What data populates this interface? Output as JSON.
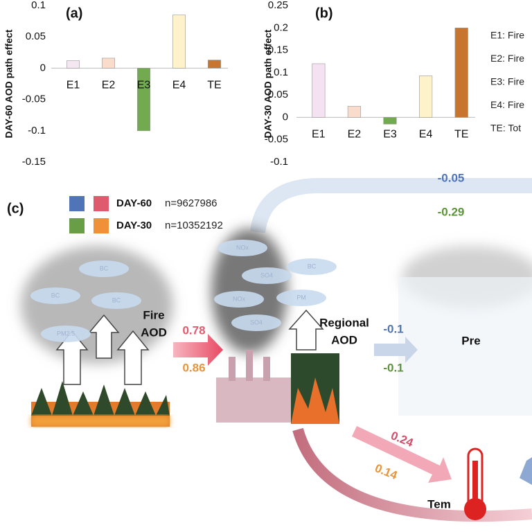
{
  "chart_data": [
    {
      "type": "bar",
      "title": "(a)",
      "y_label": "DAY-60 AOD path effect",
      "categories": [
        "E1",
        "E2",
        "E3",
        "E4",
        "TE"
      ],
      "values": [
        0.012,
        0.016,
        -0.1,
        0.085,
        0.013
      ],
      "colors": [
        "#f4e7f1",
        "#f9dccb",
        "#72aa50",
        "#fdf2c9",
        "#c8762f"
      ],
      "ylim": [
        -0.15,
        0.1
      ],
      "yticks": [
        -0.15,
        -0.1,
        -0.05,
        0,
        0.05,
        0.1
      ]
    },
    {
      "type": "bar",
      "title": "(b)",
      "y_label": "DAY-30 AOD path effect",
      "categories": [
        "E1",
        "E2",
        "E3",
        "E4",
        "TE"
      ],
      "values": [
        0.12,
        0.025,
        -0.015,
        0.093,
        0.2
      ],
      "colors": [
        "#f4e1f1",
        "#f9dccb",
        "#72aa50",
        "#fdf2c9",
        "#c8762f"
      ],
      "ylim": [
        -0.1,
        0.25
      ],
      "yticks": [
        -0.1,
        -0.05,
        0,
        0.05,
        0.1,
        0.15,
        0.2,
        0.25
      ],
      "notes": [
        "E1: Fire",
        "E2: Fire",
        "E3: Fire",
        "E4: Fire",
        "TE: Tot"
      ]
    }
  ],
  "diagram": {
    "panel_label": "(c)",
    "legend": [
      {
        "label": "DAY-60",
        "n": "n=9627986"
      },
      {
        "label": "DAY-30",
        "n": "n=10352192"
      }
    ],
    "nodes": {
      "fire": [
        "Fire",
        "AOD"
      ],
      "regional": [
        "Regional",
        "AOD"
      ],
      "pre": "Pre",
      "tem": "Tem"
    },
    "particles": [
      "PM2.5",
      "BC",
      "BC",
      "BC",
      "NOx",
      "SO4",
      "NOx",
      "SO4",
      "PM",
      "BC"
    ],
    "edges": {
      "regional_to_far": [
        -0.05,
        -0.29
      ],
      "fire_to_regional": [
        0.78,
        0.86
      ],
      "regional_to_pre": [
        -0.1,
        -0.1
      ],
      "regional_to_tem": [
        0.24,
        0.14
      ]
    }
  }
}
